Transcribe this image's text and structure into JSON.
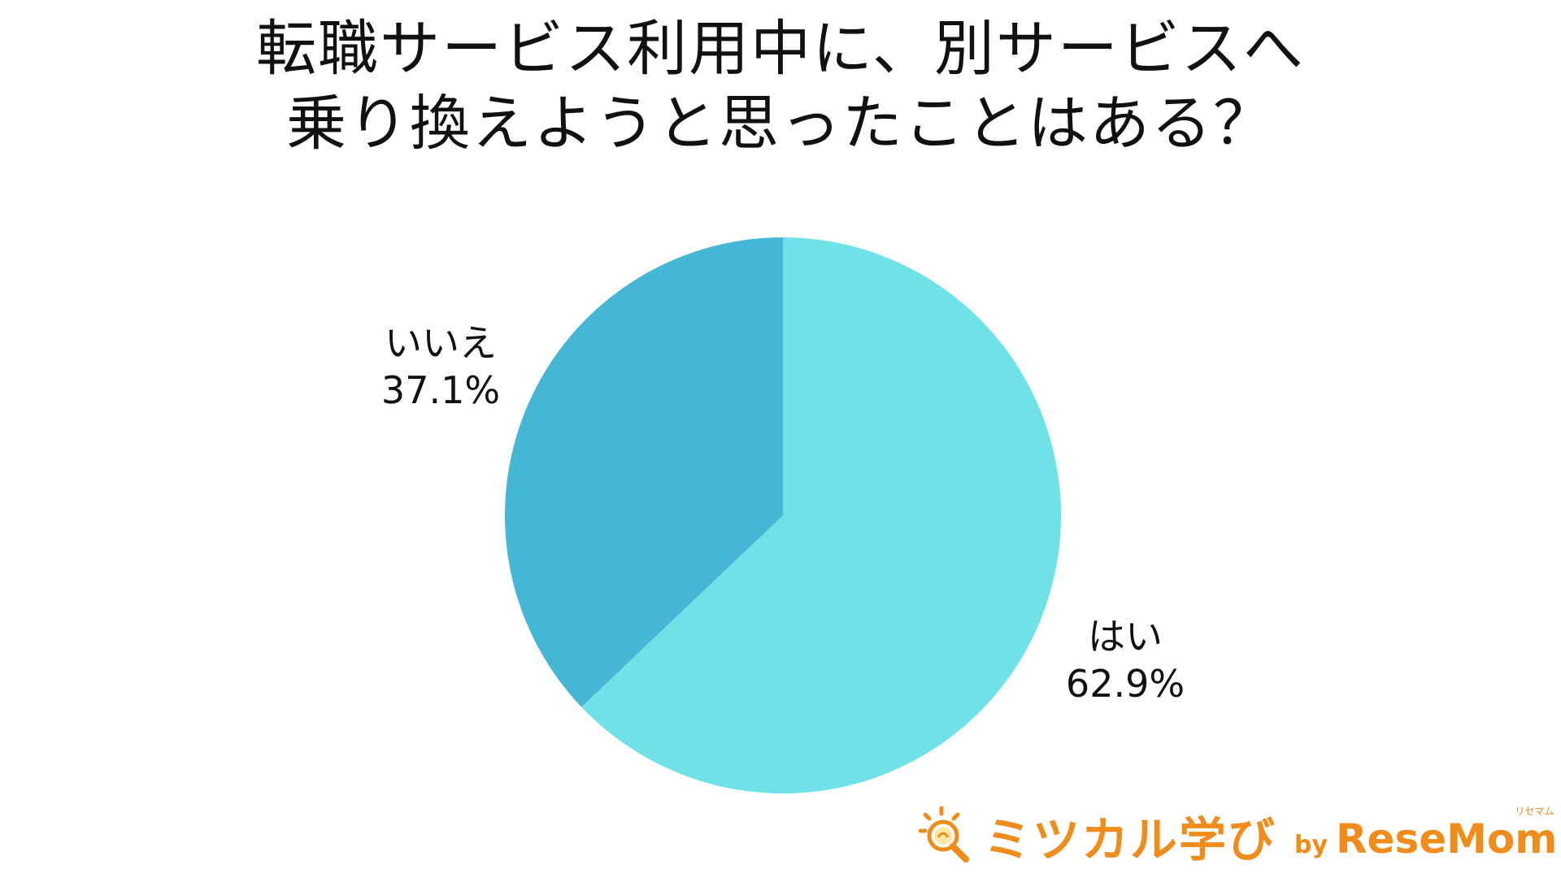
{
  "chart_data": {
    "type": "pie",
    "title_lines": [
      "転職サービス利用中に、別サービスへ",
      "乗り換えようと思ったことはある？"
    ],
    "slices": [
      {
        "label": "はい",
        "value": 62.9,
        "value_text": "62.9%",
        "color": "#6ee2e7"
      },
      {
        "label": "いいえ",
        "value": 37.1,
        "value_text": "37.1%",
        "color": "#45b6d4"
      }
    ],
    "start_angle": "12 o'clock",
    "direction": "clockwise",
    "legend": "none"
  },
  "logo": {
    "icon": "magnifier-lightbulb-icon",
    "main_text": "ミツカル学び",
    "by_text": "by",
    "brand_text": "ReseMom",
    "brand_ruby": "リセマム",
    "color": "#f08c1c"
  }
}
